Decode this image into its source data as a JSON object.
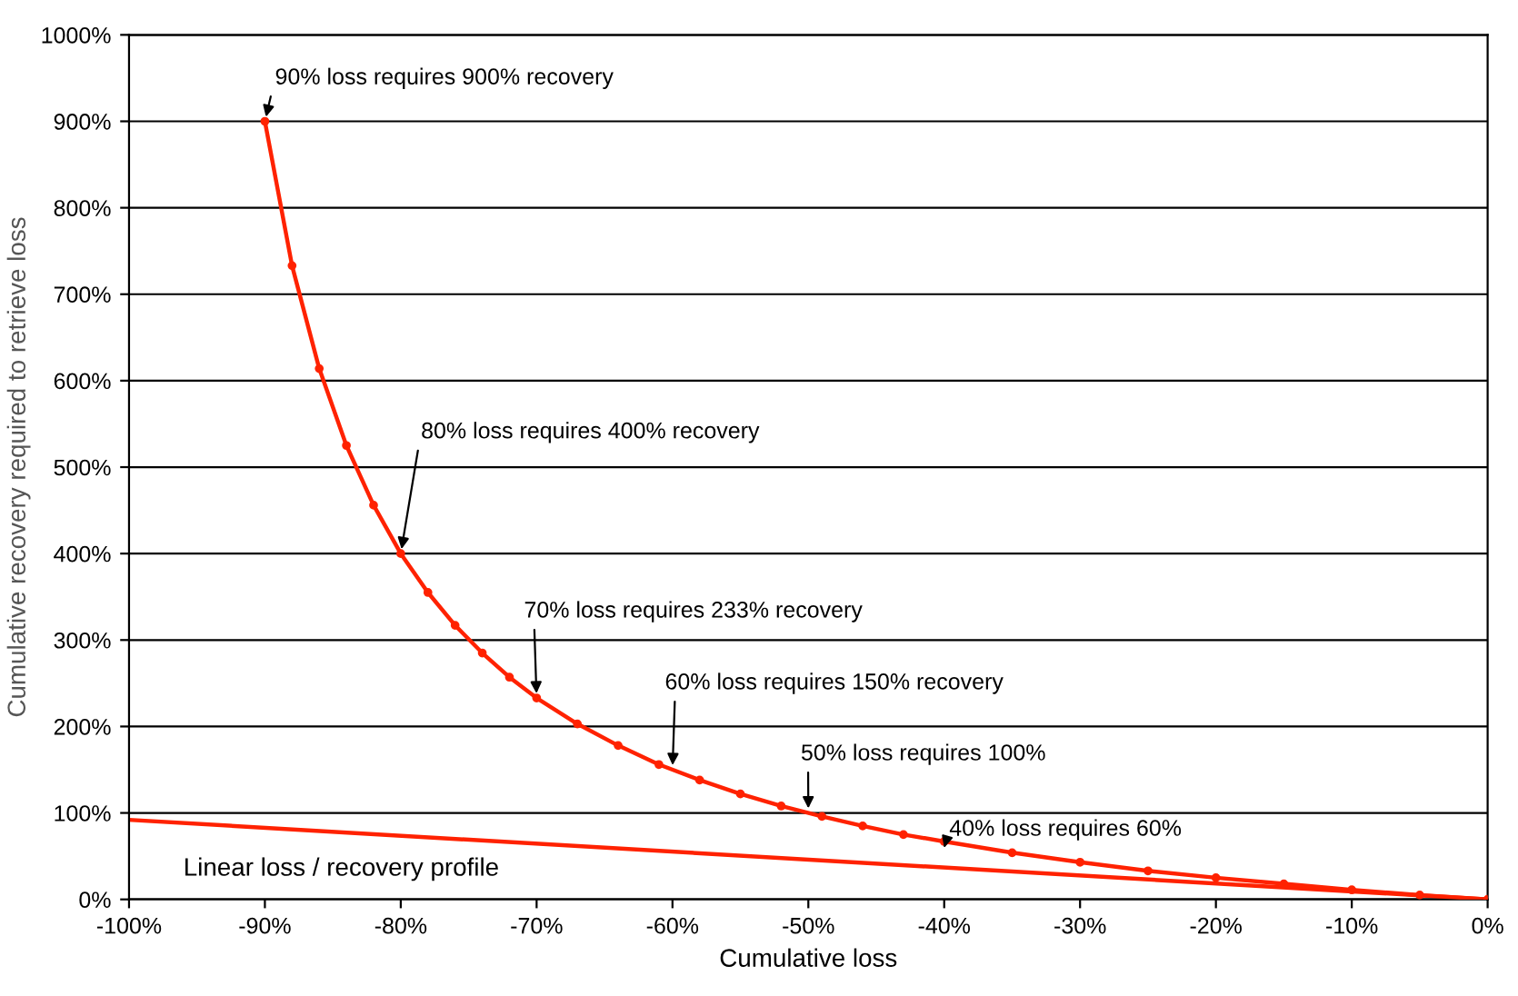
{
  "chart_data": {
    "type": "line",
    "xlabel": "Cumulative loss",
    "ylabel": "Cumulative recovery required to retrieve loss",
    "xlim": [
      -100,
      0
    ],
    "ylim": [
      0,
      1000
    ],
    "xticks": [
      {
        "value": -100,
        "label": "-100%"
      },
      {
        "value": -90,
        "label": "-90%"
      },
      {
        "value": -80,
        "label": "-80%"
      },
      {
        "value": -70,
        "label": "-70%"
      },
      {
        "value": -60,
        "label": "-60%"
      },
      {
        "value": -50,
        "label": "-50%"
      },
      {
        "value": -40,
        "label": "-40%"
      },
      {
        "value": -30,
        "label": "-30%"
      },
      {
        "value": -20,
        "label": "-20%"
      },
      {
        "value": -10,
        "label": "-10%"
      },
      {
        "value": 0,
        "label": "0%"
      }
    ],
    "yticks": [
      {
        "value": 0,
        "label": "0%"
      },
      {
        "value": 100,
        "label": "100%"
      },
      {
        "value": 200,
        "label": "200%"
      },
      {
        "value": 300,
        "label": "300%"
      },
      {
        "value": 400,
        "label": "400%"
      },
      {
        "value": 500,
        "label": "500%"
      },
      {
        "value": 600,
        "label": "600%"
      },
      {
        "value": 700,
        "label": "700%"
      },
      {
        "value": 800,
        "label": "800%"
      },
      {
        "value": 900,
        "label": "900%"
      },
      {
        "value": 1000,
        "label": "1000%"
      }
    ],
    "grid": "y",
    "legend": false,
    "marker": "circle",
    "line_style": "solid",
    "series": [
      {
        "color": "#ff2200",
        "x": [
          -90,
          -88,
          -86,
          -84,
          -82,
          -80,
          -78,
          -76,
          -74,
          -72,
          -70,
          -67,
          -64,
          -61,
          -58,
          -55,
          -52,
          -49,
          -46,
          -43,
          -40,
          -35,
          -30,
          -25,
          -20,
          -15,
          -10,
          -5,
          0
        ],
        "values": [
          900,
          733,
          614,
          525,
          456,
          400,
          355,
          317,
          285,
          257,
          233,
          203,
          178,
          156,
          138,
          122,
          108,
          96,
          85,
          75,
          67,
          54,
          43,
          33,
          25,
          18,
          11,
          5,
          0
        ]
      },
      {
        "color": "#ff2200",
        "marker": "none",
        "x": [
          -100,
          0
        ],
        "values": [
          92,
          0
        ]
      }
    ],
    "annotations": [
      {
        "text": "90% loss requires 900% recovery",
        "x": -90,
        "y": 900
      },
      {
        "text": "80% loss requires 400% recovery",
        "x": -80,
        "y": 400
      },
      {
        "text": "70% loss requires 233% recovery",
        "x": -70,
        "y": 233
      },
      {
        "text": "60% loss requires 150% recovery",
        "x": -60,
        "y": 150
      },
      {
        "text": "50% loss requires 100%",
        "x": -50,
        "y": 100
      },
      {
        "text": "40% loss requires 60%",
        "x": -40,
        "y": 60
      },
      "Linear loss / recovery profile"
    ]
  }
}
